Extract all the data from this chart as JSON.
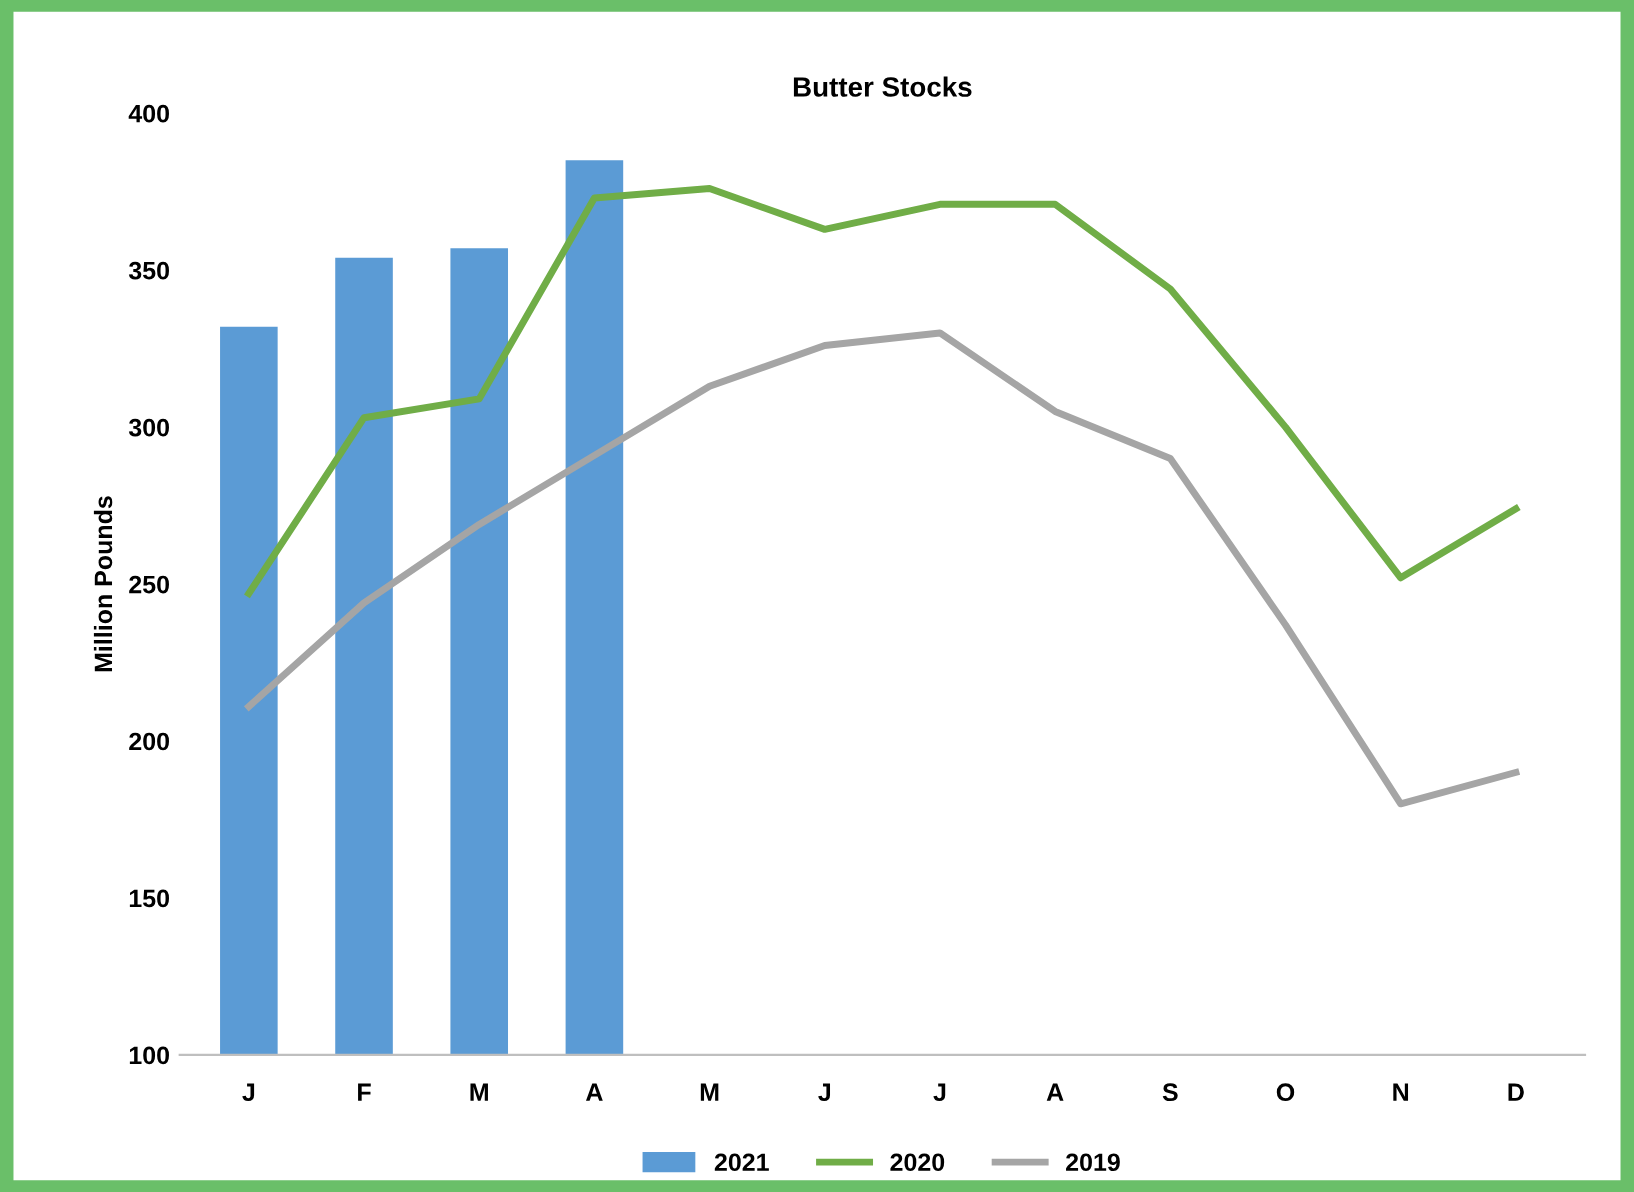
{
  "chart_data": {
    "type": "bar",
    "title": "Butter Stocks",
    "ylabel": "Million Pounds",
    "categories": [
      "J",
      "F",
      "M",
      "A",
      "M",
      "J",
      "J",
      "A",
      "S",
      "O",
      "N",
      "D"
    ],
    "series": [
      {
        "name": "2021",
        "color": "#5b9bd5",
        "values": [
          332,
          354,
          357,
          385,
          null,
          null,
          null,
          null,
          null,
          null,
          null,
          null
        ]
      },
      {
        "name": "2020",
        "type": "line",
        "color": "#70ad47",
        "values": [
          247,
          303,
          309,
          373,
          376,
          363,
          371,
          371,
          344,
          300,
          252,
          274
        ]
      },
      {
        "name": "2019",
        "type": "line",
        "color": "#a5a5a5",
        "values": [
          211,
          244,
          269,
          291,
          313,
          326,
          330,
          305,
          290,
          237,
          180,
          190
        ]
      }
    ],
    "ylim": [
      100,
      400
    ],
    "yticks": [
      100,
      150,
      200,
      250,
      300,
      350,
      400
    ],
    "grid": false,
    "legend": "bottom",
    "marker": "none",
    "line_style": "solid"
  }
}
